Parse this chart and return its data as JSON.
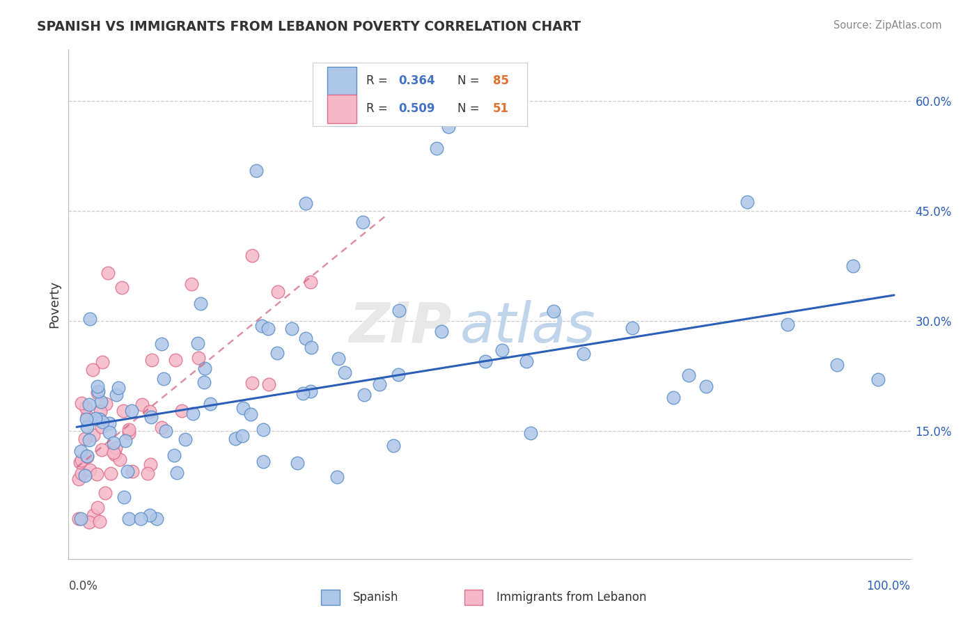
{
  "title": "SPANISH VS IMMIGRANTS FROM LEBANON POVERTY CORRELATION CHART",
  "source": "Source: ZipAtlas.com",
  "ylabel": "Poverty",
  "ytick_positions": [
    0.15,
    0.3,
    0.45,
    0.6
  ],
  "ytick_labels": [
    "15.0%",
    "30.0%",
    "45.0%",
    "60.0%"
  ],
  "xlim": [
    -0.01,
    1.02
  ],
  "ylim": [
    -0.025,
    0.67
  ],
  "xleft_label": "0.0%",
  "xright_label": "100.0%",
  "legend_R_spanish": "0.364",
  "legend_N_spanish": "85",
  "legend_R_lebanon": "0.509",
  "legend_N_lebanon": "51",
  "spanish_face": "#aec6e8",
  "spanish_edge": "#5b8fc9",
  "lebanon_face": "#f5b8c8",
  "lebanon_edge": "#e0708a",
  "trend_spanish_color": "#2b5eb8",
  "trend_lebanon_color": "#d06080",
  "grid_color": "#cccccc",
  "background": "#ffffff",
  "title_color": "#333333",
  "source_color": "#888888",
  "watermark_zip_color": "#e8e8e8",
  "watermark_atlas_color": "#c0d4ec",
  "legend_text_R_color": "#4472c4",
  "legend_text_N_color": "#e07030",
  "legend_box_edge": "#cccccc"
}
